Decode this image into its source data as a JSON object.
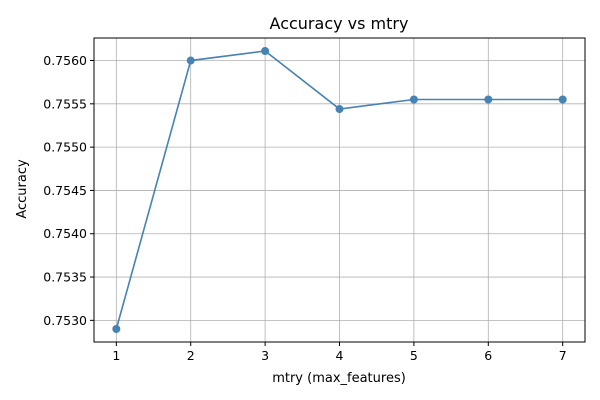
{
  "chart_data": {
    "type": "line",
    "title": "Accuracy vs mtry",
    "xlabel": "mtry (max_features)",
    "ylabel": "Accuracy",
    "x": [
      1,
      2,
      3,
      4,
      5,
      6,
      7
    ],
    "series": [
      {
        "values": [
          0.7529,
          0.756,
          0.75611,
          0.75544,
          0.75555,
          0.75555,
          0.75555
        ],
        "color": "#4682b4",
        "marker": "circle"
      }
    ],
    "x_ticks": [
      1,
      2,
      3,
      4,
      5,
      6,
      7
    ],
    "x_tick_labels": [
      "1",
      "2",
      "3",
      "4",
      "5",
      "6",
      "7"
    ],
    "y_ticks": [
      0.753,
      0.7535,
      0.754,
      0.7545,
      0.755,
      0.7555,
      0.756
    ],
    "y_tick_labels": [
      "0.7530",
      "0.7535",
      "0.7540",
      "0.7545",
      "0.7550",
      "0.7555",
      "0.7560"
    ],
    "xlim": [
      0.7,
      7.3
    ],
    "ylim": [
      0.75275,
      0.75626
    ],
    "grid": true,
    "colors": {
      "line": "#4682b4",
      "grid": "#b0b0b0",
      "axes": "#000000"
    }
  }
}
